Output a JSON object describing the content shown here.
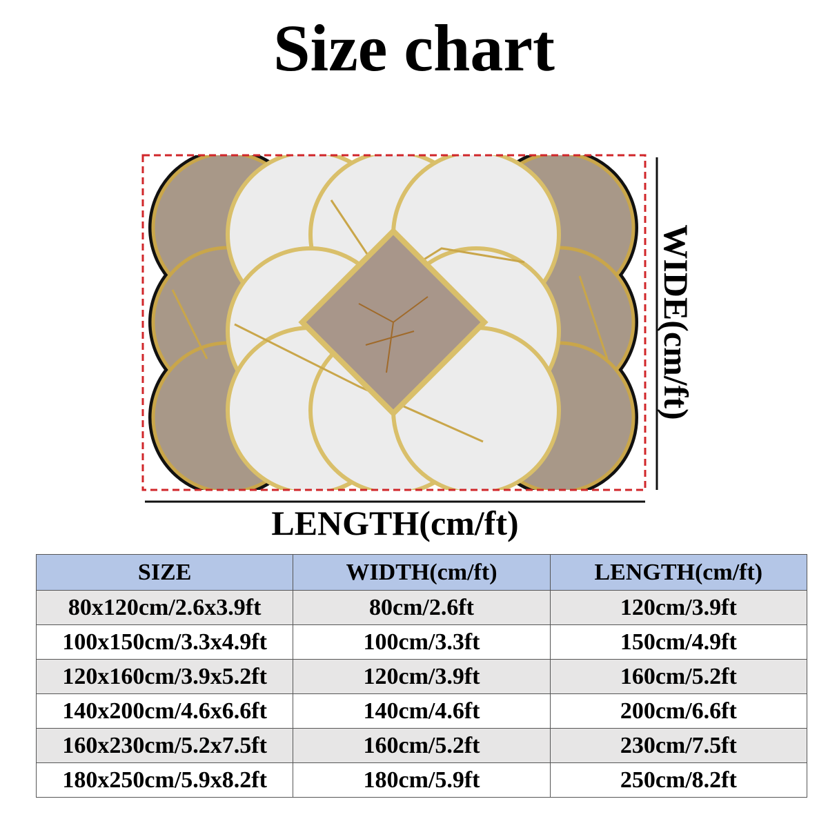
{
  "title": "Size chart",
  "length_label": "LENGTH(cm/ft)",
  "width_label": "WIDE(cm/ft)",
  "table": {
    "header": [
      "SIZE",
      "WIDTH(cm/ft)",
      "LENGTH(cm/ft)"
    ],
    "rows": [
      [
        "80x120cm/2.6x3.9ft",
        "80cm/2.6ft",
        "120cm/3.9ft"
      ],
      [
        "100x150cm/3.3x4.9ft",
        "100cm/3.3ft",
        "150cm/4.9ft"
      ],
      [
        "120x160cm/3.9x5.2ft",
        "120cm/3.9ft",
        "160cm/5.2ft"
      ],
      [
        "140x200cm/4.6x6.6ft",
        "140cm/4.6ft",
        "200cm/6.6ft"
      ],
      [
        "160x230cm/5.2x7.5ft",
        "160cm/5.2ft",
        "230cm/7.5ft"
      ],
      [
        "180x250cm/5.9x8.2ft",
        "180cm/5.9ft",
        "250cm/8.2ft"
      ]
    ]
  }
}
